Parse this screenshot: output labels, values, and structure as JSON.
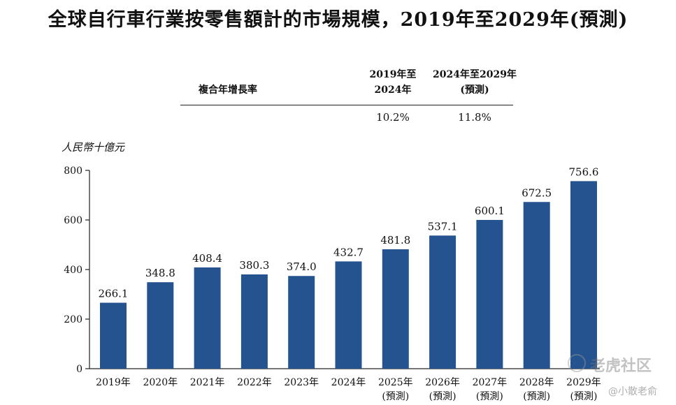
{
  "chart_data": {
    "type": "bar",
    "title": "全球自行車行業按零售額計的市場規模，2019年至2029年(預測)",
    "ylabel": "人民幣十億元",
    "ylim": [
      0,
      800
    ],
    "yticks": [
      0,
      200,
      400,
      600,
      800
    ],
    "grid": false,
    "bar_color": "#24538f",
    "categories": [
      [
        "2019年"
      ],
      [
        "2020年"
      ],
      [
        "2021年"
      ],
      [
        "2022年"
      ],
      [
        "2023年"
      ],
      [
        "2024年"
      ],
      [
        "2025年",
        "(預測)"
      ],
      [
        "2026年",
        "(預測)"
      ],
      [
        "2027年",
        "(預測)"
      ],
      [
        "2028年",
        "(預測)"
      ],
      [
        "2029年",
        "(預測)"
      ]
    ],
    "values": [
      266.1,
      348.8,
      408.4,
      380.3,
      374.0,
      432.7,
      481.8,
      537.1,
      600.1,
      672.5,
      756.6
    ],
    "value_labels": [
      "266.1",
      "348.8",
      "408.4",
      "380.3",
      "374.0",
      "432.7",
      "481.8",
      "537.1",
      "600.1",
      "672.5",
      "756.6"
    ]
  },
  "cagr_table": {
    "row_label": "複合年增長率",
    "columns": [
      {
        "header_line1": "2019年至",
        "header_line2": "2024年",
        "value": "10.2%"
      },
      {
        "header_line1": "2024年至2029年",
        "header_line2": "(預測)",
        "value": "11.8%"
      }
    ]
  },
  "watermark": {
    "brand": "老虎社区",
    "author": "@小散老俞"
  }
}
